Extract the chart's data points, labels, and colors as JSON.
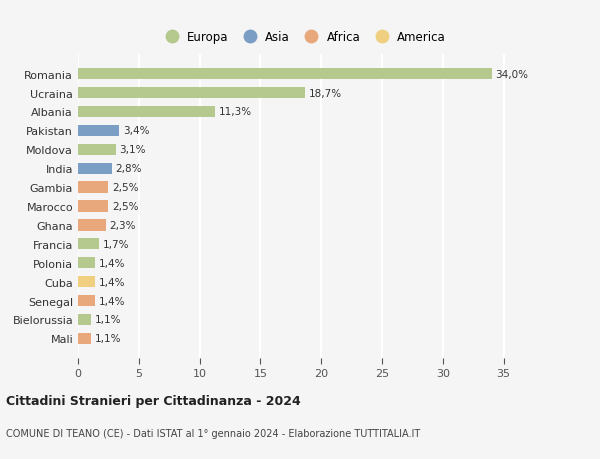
{
  "countries": [
    "Romania",
    "Ucraina",
    "Albania",
    "Pakistan",
    "Moldova",
    "India",
    "Gambia",
    "Marocco",
    "Ghana",
    "Francia",
    "Polonia",
    "Cuba",
    "Senegal",
    "Bielorussia",
    "Mali"
  ],
  "values": [
    34.0,
    18.7,
    11.3,
    3.4,
    3.1,
    2.8,
    2.5,
    2.5,
    2.3,
    1.7,
    1.4,
    1.4,
    1.4,
    1.1,
    1.1
  ],
  "labels": [
    "34,0%",
    "18,7%",
    "11,3%",
    "3,4%",
    "3,1%",
    "2,8%",
    "2,5%",
    "2,5%",
    "2,3%",
    "1,7%",
    "1,4%",
    "1,4%",
    "1,4%",
    "1,1%",
    "1,1%"
  ],
  "continents": [
    "Europa",
    "Europa",
    "Europa",
    "Asia",
    "Europa",
    "Asia",
    "Africa",
    "Africa",
    "Africa",
    "Europa",
    "Europa",
    "America",
    "Africa",
    "Europa",
    "Africa"
  ],
  "continent_colors": {
    "Europa": "#b5c98e",
    "Asia": "#7b9ec4",
    "Africa": "#e8a87c",
    "America": "#f0d080"
  },
  "legend_order": [
    "Europa",
    "Asia",
    "Africa",
    "America"
  ],
  "title": "Cittadini Stranieri per Cittadinanza - 2024",
  "subtitle": "COMUNE DI TEANO (CE) - Dati ISTAT al 1° gennaio 2024 - Elaborazione TUTTITALIA.IT",
  "xlim": [
    0,
    37
  ],
  "xticks": [
    0,
    5,
    10,
    15,
    20,
    25,
    30,
    35
  ],
  "background_color": "#f5f5f5",
  "grid_color": "#ffffff",
  "bar_height": 0.6
}
